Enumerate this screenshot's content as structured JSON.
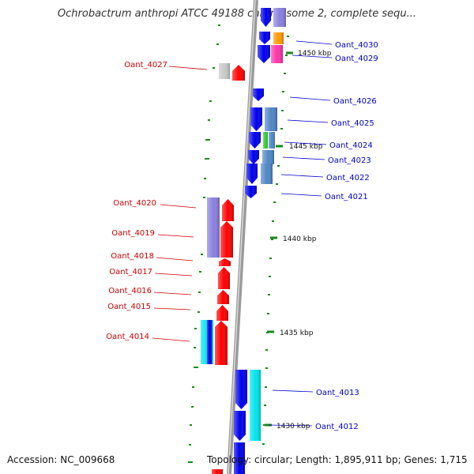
{
  "title": "Ochrobactrum anthropi ATCC 49188 chromosome 2, complete sequ...",
  "accession": "Accession: NC_009668",
  "summary": "Topology: circular; Length: 1,895,911 bp; Genes: 1,715",
  "scale_labels": [
    "1450 kbp",
    "1445 kbp",
    "1440 kbp",
    "1435 kbp",
    "1430 kbp"
  ],
  "genes_forward": [
    "Oant_4030",
    "Oant_4029",
    "Oant_4026",
    "Oant_4025",
    "Oant_4024",
    "Oant_4023",
    "Oant_4022",
    "Oant_4021",
    "Oant_4013",
    "Oant_4012"
  ],
  "genes_reverse": [
    "Oant_4027",
    "Oant_4020",
    "Oant_4019",
    "Oant_4018",
    "Oant_4017",
    "Oant_4016",
    "Oant_4015",
    "Oant_4014"
  ],
  "colors": {
    "backbone": "#a0a0a0",
    "forward_label": "#0000cc",
    "reverse_label": "#cc0000",
    "tick": "#1a8a1a",
    "gene_red": "#ff0000",
    "gene_blue": "#0000ee",
    "gene_cyan": "#00e5ee",
    "gene_steel": "#4f86c6",
    "gene_lavender": "#8a7fe0",
    "gene_orange": "#ff9900",
    "gene_magenta": "#ff33aa",
    "gene_green": "#33cc33",
    "gene_gray": "#c8c8c8"
  }
}
